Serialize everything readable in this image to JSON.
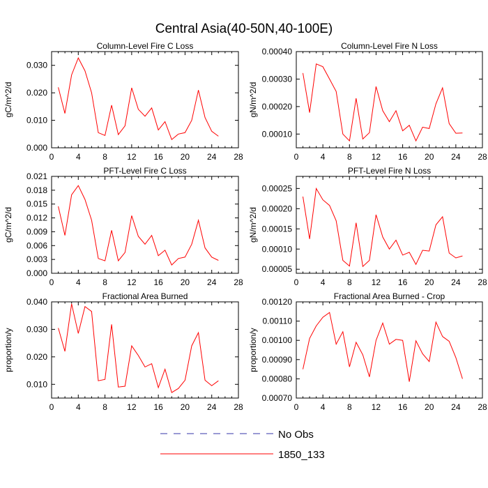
{
  "figure": {
    "title": "Central Asia(40-50N,40-100E)"
  },
  "legend": {
    "entries": [
      {
        "label": "No Obs",
        "color": "#3333aa",
        "dash": true
      },
      {
        "label": "1850_133",
        "color": "#ff0000",
        "dash": false
      }
    ]
  },
  "series_color": "#ff0000",
  "chart_data": [
    {
      "type": "line",
      "title": "Column-Level Fire C Loss",
      "ylabel": "gC/m^2/d",
      "xlim": [
        0,
        28
      ],
      "ylim": [
        0,
        0.035
      ],
      "xticks": [
        "0",
        "4",
        "8",
        "12",
        "16",
        "20",
        "24",
        "28"
      ],
      "yticks": [
        {
          "v": 0,
          "label": "0.000"
        },
        {
          "v": 0.01,
          "label": "0.010"
        },
        {
          "v": 0.02,
          "label": "0.020"
        },
        {
          "v": 0.03,
          "label": "0.030"
        }
      ],
      "series": [
        {
          "name": "1850_133",
          "x": [
            1,
            2,
            3,
            4,
            5,
            6,
            7,
            8,
            9,
            10,
            11,
            12,
            13,
            14,
            15,
            16,
            17,
            18,
            19,
            20,
            21,
            22,
            23,
            24,
            25
          ],
          "values": [
            0.022,
            0.0125,
            0.0265,
            0.0327,
            0.028,
            0.02,
            0.0055,
            0.0045,
            0.0155,
            0.0048,
            0.008,
            0.0218,
            0.014,
            0.0115,
            0.0145,
            0.0065,
            0.0095,
            0.003,
            0.005,
            0.0055,
            0.01,
            0.021,
            0.011,
            0.006,
            0.0042
          ]
        }
      ]
    },
    {
      "type": "line",
      "title": "Column-Level Fire N Loss",
      "ylabel": "gN/m^2/d",
      "xlim": [
        0,
        28
      ],
      "ylim": [
        5e-05,
        0.0004
      ],
      "xticks": [
        "0",
        "4",
        "8",
        "12",
        "16",
        "20",
        "24",
        "28"
      ],
      "yticks": [
        {
          "v": 0.0001,
          "label": "0.00010"
        },
        {
          "v": 0.0002,
          "label": "0.00020"
        },
        {
          "v": 0.0003,
          "label": "0.00030"
        },
        {
          "v": 0.0004,
          "label": "0.00040"
        }
      ],
      "series": [
        {
          "name": "1850_133",
          "x": [
            1,
            2,
            3,
            4,
            5,
            6,
            7,
            8,
            9,
            10,
            11,
            12,
            13,
            14,
            15,
            16,
            17,
            18,
            19,
            20,
            21,
            22,
            23,
            24,
            25
          ],
          "values": [
            0.000322,
            0.000178,
            0.000355,
            0.000345,
            0.0003,
            0.000255,
            0.0001,
            7.5e-05,
            0.00023,
            8.2e-05,
            0.000105,
            0.000273,
            0.000185,
            0.000145,
            0.000185,
            0.000112,
            0.000132,
            7.5e-05,
            0.000125,
            0.00012,
            0.00021,
            0.000268,
            0.000138,
            0.000103,
            0.000104
          ]
        }
      ]
    },
    {
      "type": "line",
      "title": "PFT-Level Fire C Loss",
      "ylabel": "gC/m^2/d",
      "xlim": [
        0,
        28
      ],
      "ylim": [
        0,
        0.021
      ],
      "xticks": [
        "0",
        "4",
        "8",
        "12",
        "16",
        "20",
        "24",
        "28"
      ],
      "yticks": [
        {
          "v": 0,
          "label": "0.000"
        },
        {
          "v": 0.003,
          "label": "0.003"
        },
        {
          "v": 0.006,
          "label": "0.006"
        },
        {
          "v": 0.009,
          "label": "0.009"
        },
        {
          "v": 0.012,
          "label": "0.012"
        },
        {
          "v": 0.015,
          "label": "0.015"
        },
        {
          "v": 0.018,
          "label": "0.018"
        },
        {
          "v": 0.021,
          "label": "0.021"
        }
      ],
      "series": [
        {
          "name": "1850_133",
          "x": [
            1,
            2,
            3,
            4,
            5,
            6,
            7,
            8,
            9,
            10,
            11,
            12,
            13,
            14,
            15,
            16,
            17,
            18,
            19,
            20,
            21,
            22,
            23,
            24,
            25
          ],
          "values": [
            0.0145,
            0.0082,
            0.017,
            0.019,
            0.016,
            0.0115,
            0.0032,
            0.0027,
            0.0093,
            0.0027,
            0.0045,
            0.0125,
            0.008,
            0.0063,
            0.0082,
            0.0038,
            0.005,
            0.0018,
            0.0032,
            0.0035,
            0.0063,
            0.0115,
            0.0055,
            0.0035,
            0.0028
          ]
        }
      ]
    },
    {
      "type": "line",
      "title": "PFT-Level Fire N Loss",
      "ylabel": "gN/m^2/d",
      "xlim": [
        0,
        28
      ],
      "ylim": [
        4e-05,
        0.00028
      ],
      "xticks": [
        "0",
        "4",
        "8",
        "12",
        "16",
        "20",
        "24",
        "28"
      ],
      "yticks": [
        {
          "v": 5e-05,
          "label": "0.00005"
        },
        {
          "v": 0.0001,
          "label": "0.00010"
        },
        {
          "v": 0.00015,
          "label": "0.00015"
        },
        {
          "v": 0.0002,
          "label": "0.00020"
        },
        {
          "v": 0.00025,
          "label": "0.00025"
        }
      ],
      "series": [
        {
          "name": "1850_133",
          "x": [
            1,
            2,
            3,
            4,
            5,
            6,
            7,
            8,
            9,
            10,
            11,
            12,
            13,
            14,
            15,
            16,
            17,
            18,
            19,
            20,
            21,
            22,
            23,
            24,
            25
          ],
          "values": [
            0.00023,
            0.000125,
            0.00025,
            0.000222,
            0.000208,
            0.00017,
            7.2e-05,
            5.8e-05,
            0.000165,
            5.7e-05,
            7.2e-05,
            0.000185,
            0.00013,
            0.0001,
            0.000122,
            8.5e-05,
            9.2e-05,
            6.2e-05,
            9.7e-05,
            9.5e-05,
            0.00016,
            0.00018,
            9e-05,
            7.8e-05,
            8.3e-05
          ]
        }
      ]
    },
    {
      "type": "line",
      "title": "Fractional Area Burned",
      "ylabel": "proportion/y",
      "xlim": [
        0,
        28
      ],
      "ylim": [
        0.005,
        0.04
      ],
      "xticks": [
        "0",
        "4",
        "8",
        "12",
        "16",
        "20",
        "24",
        "28"
      ],
      "yticks": [
        {
          "v": 0.01,
          "label": "0.010"
        },
        {
          "v": 0.02,
          "label": "0.020"
        },
        {
          "v": 0.03,
          "label": "0.030"
        },
        {
          "v": 0.04,
          "label": "0.040"
        }
      ],
      "series": [
        {
          "name": "1850_133",
          "x": [
            1,
            2,
            3,
            4,
            5,
            6,
            7,
            8,
            9,
            10,
            11,
            12,
            13,
            14,
            15,
            16,
            17,
            18,
            19,
            20,
            21,
            22,
            23,
            24,
            25
          ],
          "values": [
            0.0305,
            0.022,
            0.0393,
            0.0285,
            0.0383,
            0.0365,
            0.0113,
            0.0118,
            0.0318,
            0.009,
            0.0093,
            0.024,
            0.0205,
            0.0163,
            0.0175,
            0.0088,
            0.0155,
            0.007,
            0.0085,
            0.0115,
            0.024,
            0.0288,
            0.0115,
            0.0095,
            0.0113
          ]
        }
      ]
    },
    {
      "type": "line",
      "title": "Fractional Area Burned - Crop",
      "ylabel": "proportion/y",
      "xlim": [
        0,
        28
      ],
      "ylim": [
        0.0007,
        0.0012
      ],
      "xticks": [
        "0",
        "4",
        "8",
        "12",
        "16",
        "20",
        "24",
        "28"
      ],
      "yticks": [
        {
          "v": 0.0007,
          "label": "0.00070"
        },
        {
          "v": 0.0008,
          "label": "0.00080"
        },
        {
          "v": 0.0009,
          "label": "0.00090"
        },
        {
          "v": 0.001,
          "label": "0.00100"
        },
        {
          "v": 0.0011,
          "label": "0.00110"
        },
        {
          "v": 0.0012,
          "label": "0.00120"
        }
      ],
      "series": [
        {
          "name": "1850_133",
          "x": [
            1,
            2,
            3,
            4,
            5,
            6,
            7,
            8,
            9,
            10,
            11,
            12,
            13,
            14,
            15,
            16,
            17,
            18,
            19,
            20,
            21,
            22,
            23,
            24,
            25
          ],
          "values": [
            0.00085,
            0.00101,
            0.001075,
            0.00112,
            0.001145,
            0.00098,
            0.001045,
            0.000862,
            0.00099,
            0.000925,
            0.00081,
            0.001,
            0.00109,
            0.00098,
            0.001005,
            0.001,
            0.000785,
            0.000998,
            0.00093,
            0.00089,
            0.001095,
            0.00102,
            0.000995,
            0.00091,
            0.0008
          ]
        }
      ]
    }
  ]
}
